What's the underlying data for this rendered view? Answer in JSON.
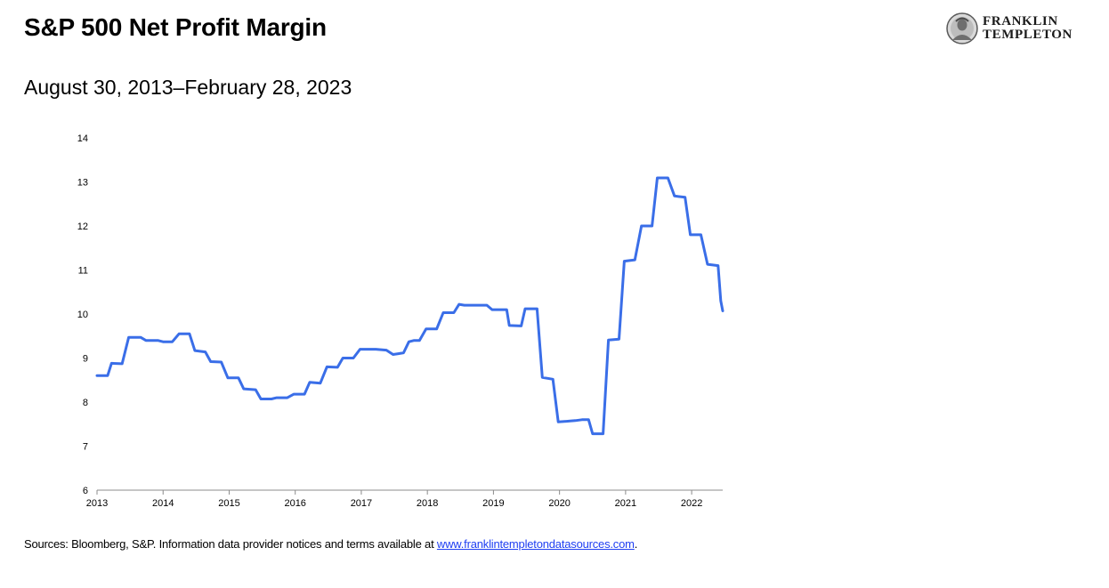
{
  "header": {
    "title": "S&P 500 Net Profit Margin",
    "subtitle": "August 30, 2013–February 28, 2023"
  },
  "logo": {
    "line1": "FRANKLIN",
    "line2": "TEMPLETON",
    "icon": "franklin-portrait-icon"
  },
  "footer": {
    "source_text": "Sources: Bloomberg, S&P. Information data provider notices and terms available at ",
    "link_text": "www.franklintempletondatasources.com",
    "trailing": "."
  },
  "colors": {
    "line": "#3a6ee8",
    "axis": "#8c8c8c",
    "link": "#1f3ff2"
  },
  "chart_data": {
    "type": "line",
    "grid": false,
    "ylim": [
      6,
      14
    ],
    "xlim": [
      2013.0,
      2022.47
    ],
    "y_ticks": [
      "6",
      "7",
      "8",
      "9",
      "10",
      "11",
      "12",
      "13",
      "14"
    ],
    "x_ticks": [
      "2013",
      "2014",
      "2015",
      "2016",
      "2017",
      "2018",
      "2019",
      "2020",
      "2021",
      "2022"
    ],
    "series": [
      {
        "x": [
          2013.0,
          2013.16,
          2013.22,
          2013.38,
          2013.48,
          2013.66,
          2013.74,
          2013.92,
          2014.0,
          2014.14,
          2014.24,
          2014.4,
          2014.48,
          2014.64,
          2014.72,
          2014.88,
          2014.98,
          2015.14,
          2015.22,
          2015.4,
          2015.48,
          2015.64,
          2015.72,
          2015.88,
          2015.98,
          2016.14,
          2016.22,
          2016.38,
          2016.48,
          2016.64,
          2016.72,
          2016.88,
          2016.98,
          2017.14,
          2017.22,
          2017.38,
          2017.48,
          2017.56,
          2017.64,
          2017.72,
          2017.8,
          2017.88,
          2017.98,
          2018.14,
          2018.24,
          2018.4,
          2018.48,
          2018.56,
          2018.64,
          2018.9,
          2018.98,
          2019.2,
          2019.24,
          2019.42,
          2019.48,
          2019.66,
          2019.74,
          2019.9,
          2019.98,
          2020.16,
          2020.24,
          2020.34,
          2020.44,
          2020.5,
          2020.66,
          2020.74,
          2020.9,
          2020.98,
          2021.14,
          2021.24,
          2021.4,
          2021.48,
          2021.64,
          2021.74,
          2021.9,
          2021.98,
          2022.14,
          2022.24,
          2022.4,
          2022.44,
          2022.47
        ],
        "y": [
          8.6,
          8.6,
          8.88,
          8.87,
          9.47,
          9.47,
          9.4,
          9.4,
          9.37,
          9.37,
          9.55,
          9.55,
          9.17,
          9.14,
          8.92,
          8.91,
          8.55,
          8.55,
          8.3,
          8.28,
          8.07,
          8.07,
          8.1,
          8.1,
          8.18,
          8.18,
          8.45,
          8.43,
          8.8,
          8.79,
          9.0,
          9.0,
          9.2,
          9.2,
          9.2,
          9.18,
          9.08,
          9.1,
          9.12,
          9.37,
          9.4,
          9.4,
          9.66,
          9.66,
          10.03,
          10.03,
          10.22,
          10.2,
          10.2,
          10.2,
          10.1,
          10.1,
          9.74,
          9.73,
          10.12,
          10.12,
          8.56,
          8.52,
          7.55,
          7.57,
          7.58,
          7.6,
          7.6,
          7.28,
          7.28,
          9.41,
          9.43,
          11.2,
          11.23,
          12.0,
          12.0,
          13.09,
          13.09,
          12.68,
          12.65,
          11.8,
          11.8,
          11.13,
          11.1,
          10.3,
          10.07
        ]
      }
    ]
  }
}
